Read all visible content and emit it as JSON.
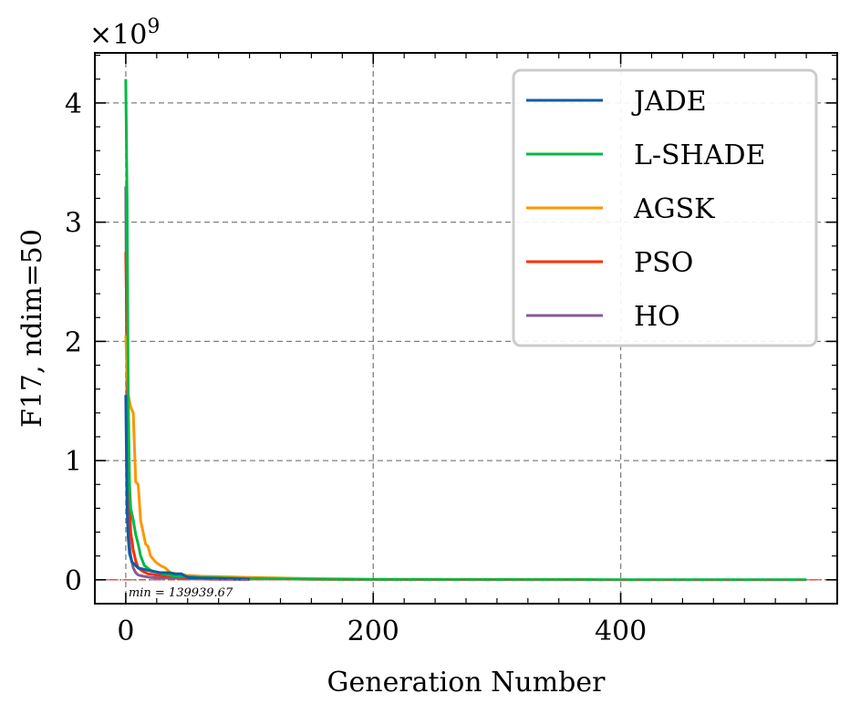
{
  "chart_data": {
    "type": "line",
    "title": "",
    "xlabel": "Generation Number",
    "ylabel": "F17, ndim=50",
    "y_scale_label": "×10",
    "y_scale_exponent": "9",
    "xlim": [
      -25,
      575
    ],
    "ylim": [
      -0.2,
      4.42
    ],
    "xticks": [
      0,
      200,
      400
    ],
    "yticks": [
      0,
      1,
      2,
      3,
      4
    ],
    "grid": true,
    "legend_position": "top-right",
    "min_line": {
      "y": 0.00014,
      "label": "min = 139939.67",
      "color": "#e8413a"
    },
    "series": [
      {
        "name": "JADE",
        "color": "#0c5da5",
        "x": [
          0,
          1,
          2,
          3,
          5,
          8,
          10,
          14,
          18,
          22,
          28,
          35,
          40,
          45,
          50,
          60,
          80,
          100
        ],
        "y": [
          1.55,
          0.6,
          0.35,
          0.22,
          0.15,
          0.12,
          0.1,
          0.09,
          0.08,
          0.07,
          0.06,
          0.06,
          0.05,
          0.05,
          0.02,
          0.015,
          0.01,
          0.005
        ]
      },
      {
        "name": "L-SHADE",
        "color": "#00b945",
        "x": [
          0,
          1,
          2,
          3,
          4,
          6,
          8,
          10,
          12,
          15,
          20,
          30,
          40,
          60,
          100,
          150,
          200,
          300,
          400,
          550
        ],
        "y": [
          4.2,
          3.2,
          1.5,
          0.8,
          0.6,
          0.5,
          0.38,
          0.3,
          0.2,
          0.12,
          0.08,
          0.05,
          0.03,
          0.02,
          0.01,
          0.005,
          0.003,
          0.002,
          0.001,
          0.0005
        ]
      },
      {
        "name": "AGSK",
        "color": "#ff9500",
        "x": [
          0,
          1,
          2,
          4,
          6,
          8,
          10,
          12,
          14,
          16,
          18,
          20,
          24,
          28,
          32,
          36,
          45,
          60,
          80,
          100,
          150,
          200,
          300,
          375
        ],
        "y": [
          2.05,
          1.75,
          1.55,
          1.45,
          1.4,
          0.82,
          0.8,
          0.5,
          0.4,
          0.3,
          0.28,
          0.2,
          0.15,
          0.12,
          0.1,
          0.06,
          0.04,
          0.03,
          0.025,
          0.02,
          0.01,
          0.005,
          0.003,
          0.002
        ]
      },
      {
        "name": "PSO",
        "color": "#ff2c00",
        "x": [
          0,
          1,
          2,
          3,
          4,
          6,
          8,
          10,
          14,
          18,
          25,
          35,
          50,
          80,
          120,
          160,
          200
        ],
        "y": [
          2.75,
          2.0,
          1.2,
          0.7,
          0.4,
          0.25,
          0.16,
          0.1,
          0.07,
          0.05,
          0.04,
          0.03,
          0.02,
          0.01,
          0.008,
          0.005,
          0.003
        ]
      },
      {
        "name": "HO",
        "color": "#845b97",
        "x": [
          0,
          1,
          2,
          3,
          4,
          6,
          8,
          10,
          14,
          20,
          30,
          50,
          70,
          100
        ],
        "y": [
          3.3,
          1.3,
          0.5,
          0.3,
          0.2,
          0.1,
          0.06,
          0.04,
          0.03,
          0.02,
          0.015,
          0.01,
          0.005,
          0.003
        ]
      }
    ]
  }
}
